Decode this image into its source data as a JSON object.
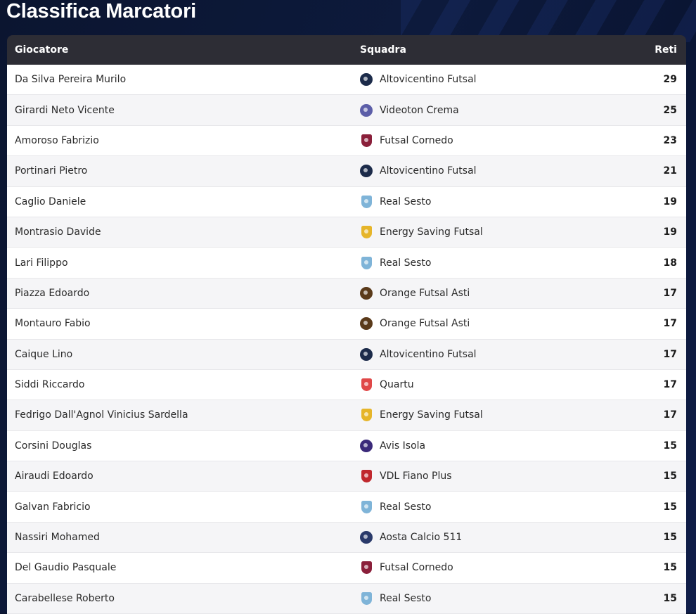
{
  "title": "Classifica Marcatori",
  "columns": {
    "player": "Giocatore",
    "team": "Squadra",
    "goals": "Reti"
  },
  "rows": [
    {
      "player": "Da Silva Pereira Murilo",
      "team": "Altovicentino Futsal",
      "goals": "29",
      "crest": "altovicentino-crest-icon",
      "color": "#1c2b4a"
    },
    {
      "player": "Girardi Neto Vicente",
      "team": "Videoton Crema",
      "goals": "25",
      "crest": "videoton-crest-icon",
      "color": "#5c5ea8"
    },
    {
      "player": "Amoroso Fabrizio",
      "team": "Futsal Cornedo",
      "goals": "23",
      "crest": "cornedo-crest-icon",
      "color": "#8a1f3a"
    },
    {
      "player": "Portinari Pietro",
      "team": "Altovicentino Futsal",
      "goals": "21",
      "crest": "altovicentino-crest-icon",
      "color": "#1c2b4a"
    },
    {
      "player": "Caglio Daniele",
      "team": "Real Sesto",
      "goals": "19",
      "crest": "real-sesto-crest-icon",
      "color": "#7fb4d8"
    },
    {
      "player": "Montrasio Davide",
      "team": "Energy Saving Futsal",
      "goals": "19",
      "crest": "energy-saving-crest-icon",
      "color": "#e6b52a"
    },
    {
      "player": "Lari Filippo",
      "team": "Real Sesto",
      "goals": "18",
      "crest": "real-sesto-crest-icon",
      "color": "#7fb4d8"
    },
    {
      "player": "Piazza Edoardo",
      "team": "Orange Futsal Asti",
      "goals": "17",
      "crest": "orange-asti-crest-icon",
      "color": "#5a3a1a"
    },
    {
      "player": "Montauro Fabio",
      "team": "Orange Futsal Asti",
      "goals": "17",
      "crest": "orange-asti-crest-icon",
      "color": "#5a3a1a"
    },
    {
      "player": "Caique Lino",
      "team": "Altovicentino Futsal",
      "goals": "17",
      "crest": "altovicentino-crest-icon",
      "color": "#1c2b4a"
    },
    {
      "player": "Siddi Riccardo",
      "team": "Quartu",
      "goals": "17",
      "crest": "quartu-crest-icon",
      "color": "#e04848"
    },
    {
      "player": "Fedrigo Dall'Agnol Vinicius Sardella",
      "team": "Energy Saving Futsal",
      "goals": "17",
      "crest": "energy-saving-crest-icon",
      "color": "#e6b52a"
    },
    {
      "player": "Corsini Douglas",
      "team": "Avis Isola",
      "goals": "15",
      "crest": "avis-isola-crest-icon",
      "color": "#3b2a7a"
    },
    {
      "player": "Airaudi Edoardo",
      "team": "VDL Fiano Plus",
      "goals": "15",
      "crest": "vdl-fiano-crest-icon",
      "color": "#c0282e"
    },
    {
      "player": "Galvan Fabricio",
      "team": "Real Sesto",
      "goals": "15",
      "crest": "real-sesto-crest-icon",
      "color": "#7fb4d8"
    },
    {
      "player": "Nassiri Mohamed",
      "team": "Aosta Calcio 511",
      "goals": "15",
      "crest": "aosta-crest-icon",
      "color": "#2a3a6a"
    },
    {
      "player": "Del Gaudio Pasquale",
      "team": "Futsal Cornedo",
      "goals": "15",
      "crest": "cornedo-crest-icon",
      "color": "#8a1f3a"
    },
    {
      "player": "Carabellese Roberto",
      "team": "Real Sesto",
      "goals": "15",
      "crest": "real-sesto-crest-icon",
      "color": "#7fb4d8"
    }
  ]
}
